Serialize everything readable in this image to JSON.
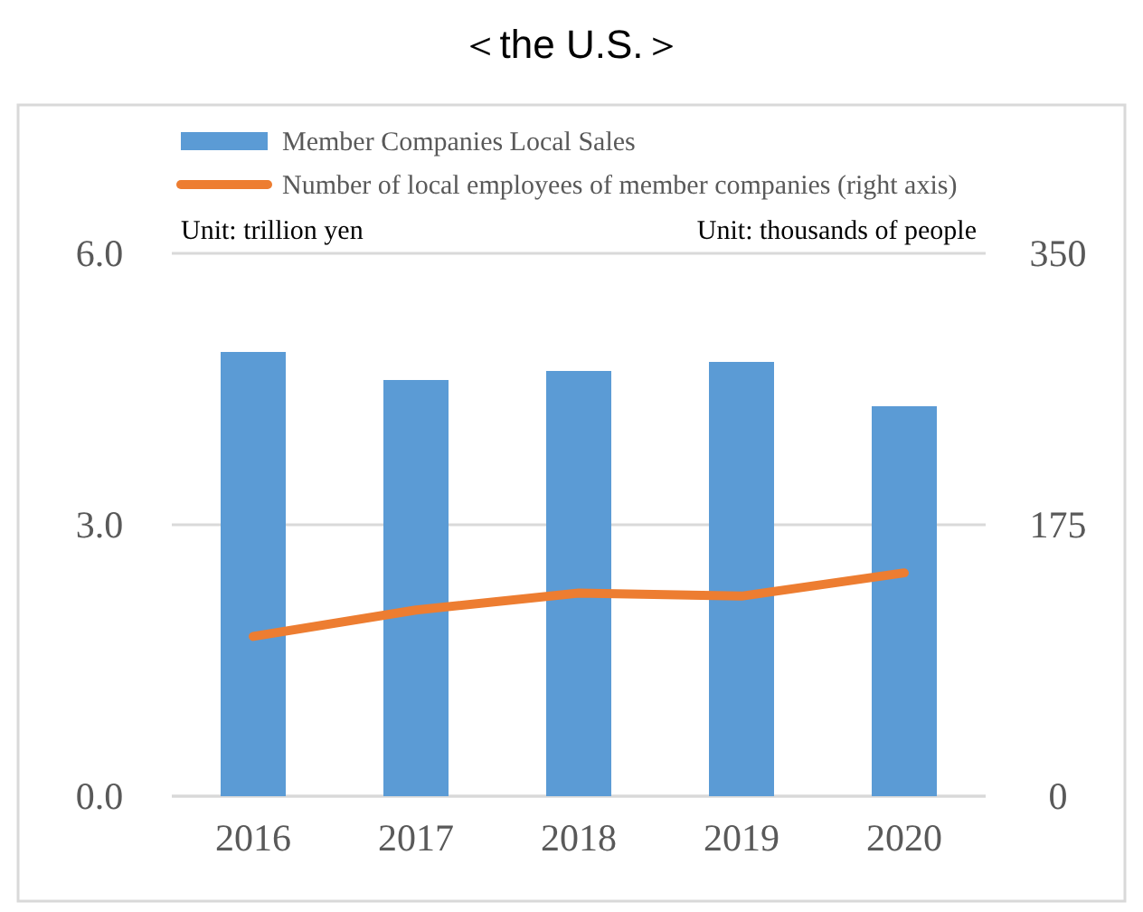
{
  "chart_data": {
    "type": "bar",
    "title": "＜the U.S.＞",
    "categories": [
      "2016",
      "2017",
      "2018",
      "2019",
      "2020"
    ],
    "series": [
      {
        "name": "Member Companies Local Sales",
        "color": "#5b9bd5",
        "values": [
          4.91,
          4.6,
          4.7,
          4.8,
          4.31
        ]
      },
      {
        "name": "Number of local employees of member companies (right axis)",
        "type": "line",
        "axis": "y2",
        "color": "#ed7d31",
        "values": [
          103,
          120,
          131,
          129,
          144
        ]
      }
    ],
    "ylim": [
      0,
      6
    ],
    "yticks": [
      {
        "value": 0,
        "label": "0.0"
      },
      {
        "value": 3,
        "label": "3.0"
      },
      {
        "value": 6,
        "label": "6.0"
      }
    ],
    "y2lim": [
      0,
      350
    ],
    "y2ticks": [
      0,
      175,
      350
    ],
    "annotations": [
      "Unit: trillion yen",
      "Unit: thousands of people"
    ],
    "grid": "y",
    "legend": "top"
  }
}
